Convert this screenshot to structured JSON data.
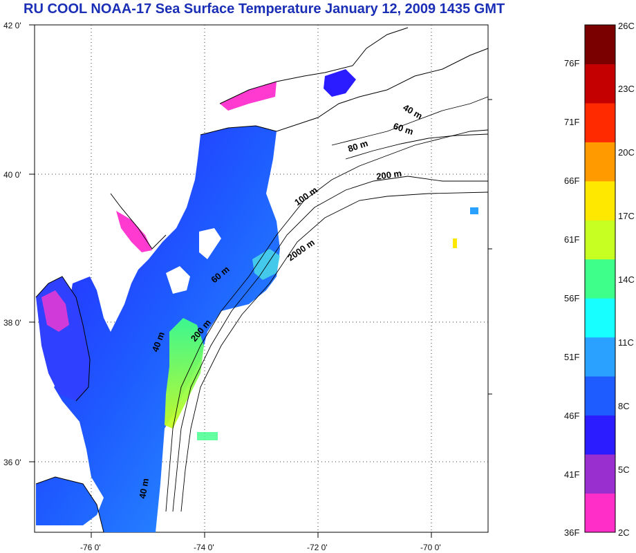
{
  "title": "RU COOL  NOAA-17 Sea Surface Temperature January 12, 2009 1435 GMT",
  "map": {
    "lat_labels": [
      "42 0'",
      "40 0'",
      "38 0'",
      "36 0'"
    ],
    "lon_labels": [
      "-76 0'",
      "-74 0'",
      "-72 0'",
      "-70 0'"
    ],
    "depth_labels": [
      "40 m",
      "60 m",
      "80 m",
      "200 m",
      "100 m",
      "2000 m",
      "60 m",
      "200 m",
      "40 m",
      "40 m"
    ]
  },
  "colorbar": {
    "colors": [
      "#ff2ec8",
      "#9a2fd0",
      "#2a1cff",
      "#1e5cff",
      "#2aa0ff",
      "#18ffff",
      "#3dff8a",
      "#c8ff22",
      "#ffe800",
      "#ff9a00",
      "#ff2a00",
      "#c40000",
      "#7a0000"
    ],
    "celsius": [
      "26C",
      "23C",
      "20C",
      "17C",
      "14C",
      "11C",
      "8C",
      "5C",
      "2C"
    ],
    "fahrenheit": [
      "76F",
      "71F",
      "66F",
      "61F",
      "56F",
      "51F",
      "46F",
      "41F",
      "36F"
    ]
  }
}
